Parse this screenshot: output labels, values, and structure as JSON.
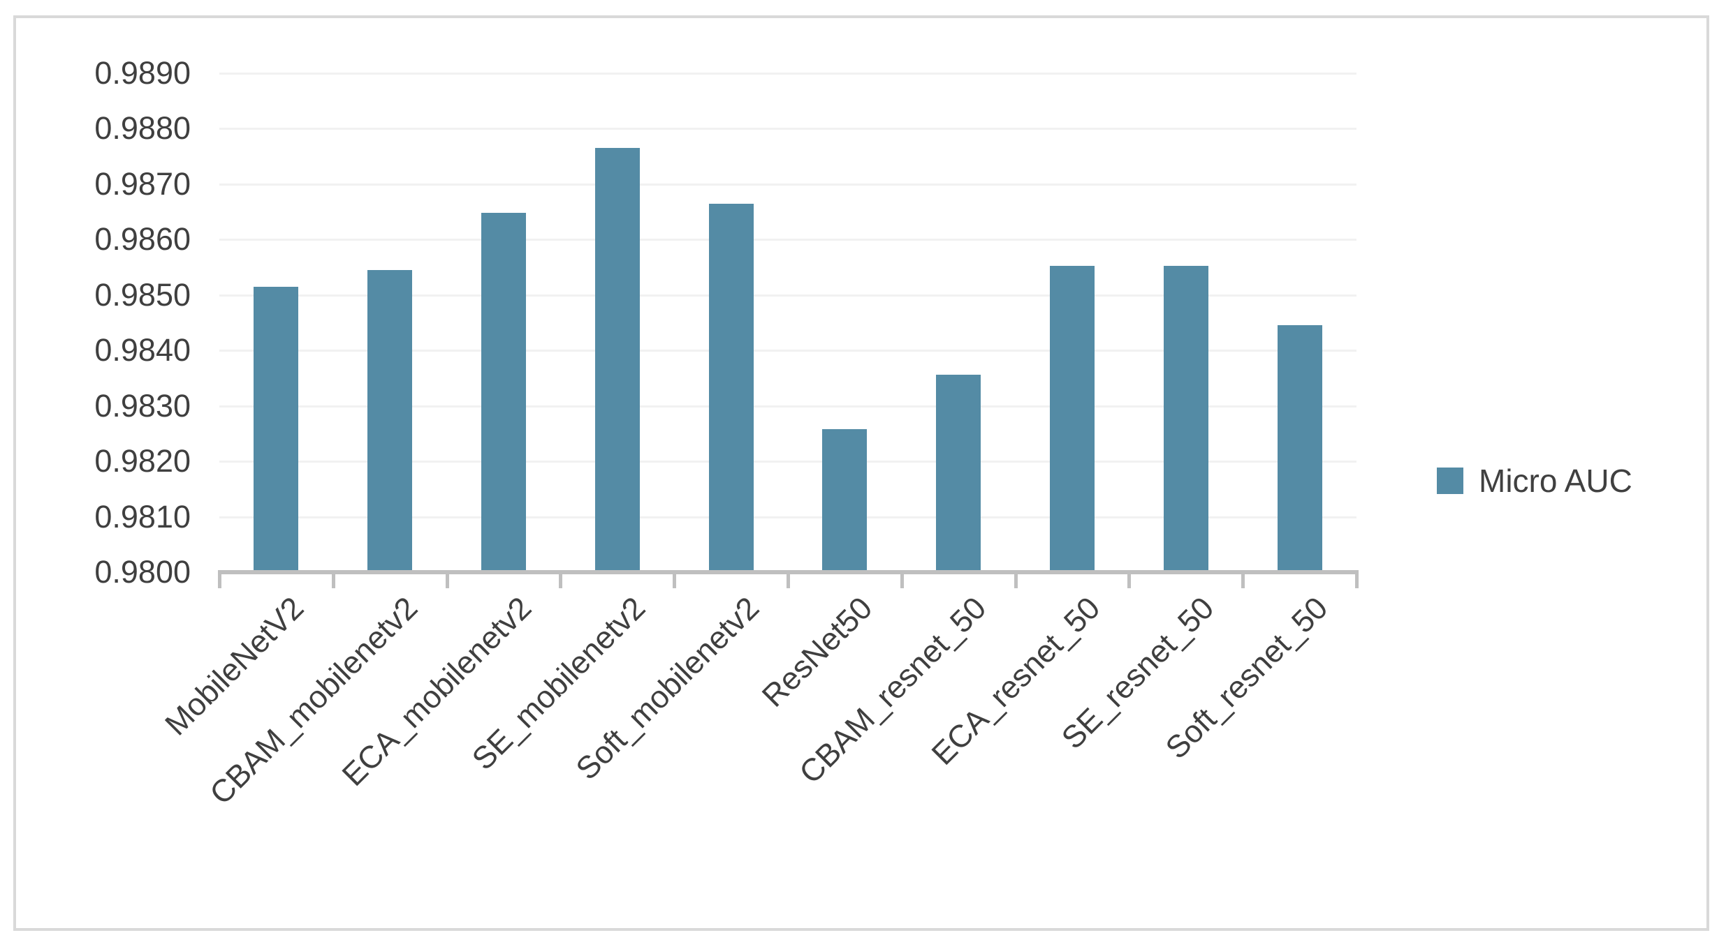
{
  "colors": {
    "bar_fill": "#548ba5",
    "axis_line": "#bfbfbf",
    "gridline": "#f1f1f1",
    "text": "#3f3f3f",
    "frame_border": "#d9d9d9",
    "background": "#ffffff"
  },
  "legend": {
    "label": "Micro AUC"
  },
  "chart_data": {
    "type": "bar",
    "title": "",
    "xlabel": "",
    "ylabel": "",
    "categories": [
      "MobileNetV2",
      "CBAM_mobilenetv2",
      "ECA_mobilenetv2",
      "SE_mobilenetv2",
      "Soft_mobilenetv2",
      "ResNet50",
      "CBAM_resnet_50",
      "ECA_resnet_50",
      "SE_resnet_50",
      "Soft_resnet_50"
    ],
    "series": [
      {
        "name": "Micro AUC",
        "values": [
          0.98515,
          0.98545,
          0.98648,
          0.98765,
          0.98665,
          0.98258,
          0.98356,
          0.98552,
          0.98552,
          0.98445
        ]
      }
    ],
    "ylim": [
      0.98,
      0.989
    ],
    "ytick_labels": [
      "0.9800",
      "0.9810",
      "0.9820",
      "0.9830",
      "0.9840",
      "0.9850",
      "0.9860",
      "0.9870",
      "0.9880",
      "0.9890"
    ],
    "grid": true,
    "legend_position": "right",
    "x_tick_label_rotation_deg": 45
  }
}
